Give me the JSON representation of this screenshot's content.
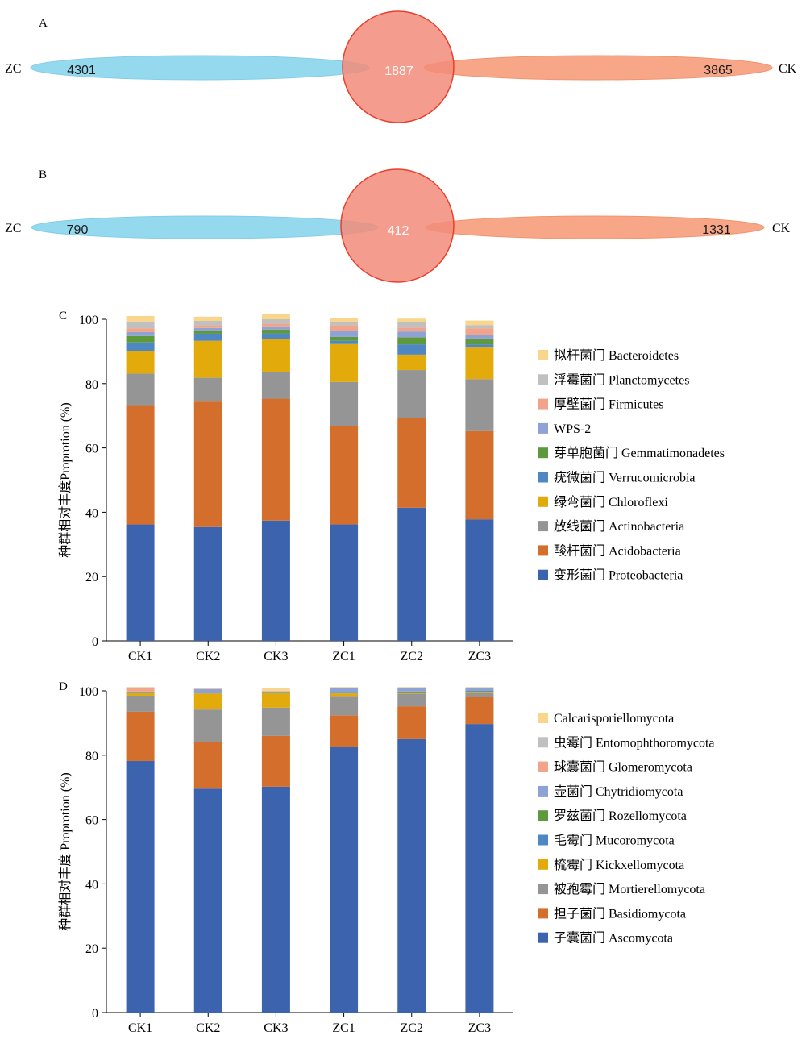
{
  "venn": [
    {
      "panel": "A",
      "left_label": "ZC",
      "right_label": "CK",
      "left_only": "4301",
      "shared": "1887",
      "right_only": "3865"
    },
    {
      "panel": "B",
      "left_label": "ZC",
      "right_label": "CK",
      "left_only": "790",
      "shared": "412",
      "right_only": "1331"
    }
  ],
  "colors": {
    "venn_left": "#8fd8ee",
    "venn_right": "#f7a382",
    "venn_circle": "#f28c7a",
    "venn_circle_stroke": "#e8402e"
  },
  "chart_data": [
    {
      "panel": "C",
      "type": "bar",
      "stacked": true,
      "categories": [
        "CK1",
        "CK2",
        "CK3",
        "ZC1",
        "ZC2",
        "ZC3"
      ],
      "ylabel": "种群相对丰度Proprotion (%)",
      "ylim": [
        0,
        100
      ],
      "yticks": [
        0,
        20,
        40,
        60,
        80,
        100
      ],
      "legend_position": "right",
      "series": [
        {
          "name": "变形菌门 Proteobacteria",
          "color": "#3c63ae",
          "values": [
            36.2,
            35.4,
            37.4,
            36.2,
            41.4,
            37.8
          ]
        },
        {
          "name": "酸杆菌门 Acidobacteria",
          "color": "#d36e2d",
          "values": [
            37.1,
            39.0,
            37.9,
            30.5,
            27.8,
            27.4
          ]
        },
        {
          "name": "放线菌门 Actinobacteria",
          "color": "#959595",
          "values": [
            9.8,
            7.4,
            8.3,
            13.8,
            15.0,
            16.2
          ]
        },
        {
          "name": "绿弯菌门 Chloroflexi",
          "color": "#e3aa0c",
          "values": [
            6.9,
            11.5,
            10.2,
            11.8,
            4.8,
            9.8
          ]
        },
        {
          "name": "疣微菌门 Verrucomicrobia",
          "color": "#4e87c2",
          "values": [
            2.8,
            2.2,
            1.8,
            1.0,
            3.2,
            1.0
          ]
        },
        {
          "name": "芽单胞菌门 Gemmatimonadetes",
          "color": "#5e9a3c",
          "values": [
            2.0,
            1.0,
            1.2,
            1.2,
            2.2,
            1.8
          ]
        },
        {
          "name": "WPS-2",
          "color": "#8fa2d6",
          "values": [
            1.2,
            0.8,
            1.0,
            1.8,
            1.8,
            1.2
          ]
        },
        {
          "name": "厚壁菌门 Firmicutes",
          "color": "#f2a48a",
          "values": [
            1.2,
            0.8,
            0.8,
            1.8,
            1.2,
            2.0
          ]
        },
        {
          "name": "浮霉菌门 Planctomycetes",
          "color": "#c0c0c0",
          "values": [
            2.1,
            1.4,
            1.4,
            1.0,
            1.6,
            1.0
          ]
        },
        {
          "name": "拟杆菌门 Bacteroidetes",
          "color": "#fad58c",
          "values": [
            1.7,
            1.3,
            1.7,
            1.2,
            1.2,
            1.4
          ]
        }
      ]
    },
    {
      "panel": "D",
      "type": "bar",
      "stacked": true,
      "categories": [
        "CK1",
        "CK2",
        "CK3",
        "ZC1",
        "ZC2",
        "ZC3"
      ],
      "ylabel": "种群相对丰度 Proprotion (%)",
      "ylim": [
        0,
        100
      ],
      "yticks": [
        0,
        20,
        40,
        60,
        80,
        100
      ],
      "legend_position": "right",
      "series": [
        {
          "name": "子囊菌门 Ascomycota",
          "color": "#3c63ae",
          "values": [
            78.2,
            69.6,
            70.2,
            82.6,
            85.0,
            89.7
          ]
        },
        {
          "name": "担子菌门 Basidiomycota",
          "color": "#d36e2d",
          "values": [
            15.3,
            14.6,
            15.8,
            9.8,
            10.2,
            8.3
          ]
        },
        {
          "name": "被孢霉门 Mortierellomycota",
          "color": "#959595",
          "values": [
            5.0,
            10.0,
            8.8,
            6.0,
            3.8,
            1.4
          ]
        },
        {
          "name": "梳霉门 Kickxellomycota",
          "color": "#e3aa0c",
          "values": [
            0.8,
            5.0,
            4.5,
            0.8,
            0.4,
            0.3
          ]
        },
        {
          "name": "毛霉门 Mucoromycota",
          "color": "#4e87c2",
          "values": [
            0.2,
            0.2,
            0.2,
            0.3,
            0.3,
            0.2
          ]
        },
        {
          "name": "罗兹菌门 Rozellomycota",
          "color": "#5e9a3c",
          "values": [
            0.1,
            0.1,
            0.1,
            0.1,
            0.1,
            0.1
          ]
        },
        {
          "name": "壶菌门 Chytridiomycota",
          "color": "#8fa2d6",
          "values": [
            0.2,
            1.0,
            0.2,
            1.2,
            1.0,
            0.9
          ]
        },
        {
          "name": "球囊菌门 Glomeromycota",
          "color": "#f2a48a",
          "values": [
            1.2,
            0.1,
            0.1,
            0.2,
            0.2,
            0.1
          ]
        },
        {
          "name": "虫霉门 Entomophthoromycota",
          "color": "#c0c0c0",
          "values": [
            0.1,
            0.1,
            0.1,
            0.1,
            0.1,
            0.1
          ]
        },
        {
          "name": "Calcarisporiellomycota",
          "color": "#fad58c",
          "values": [
            0.1,
            0.1,
            1.0,
            0.1,
            0.1,
            0.1
          ]
        }
      ]
    }
  ]
}
